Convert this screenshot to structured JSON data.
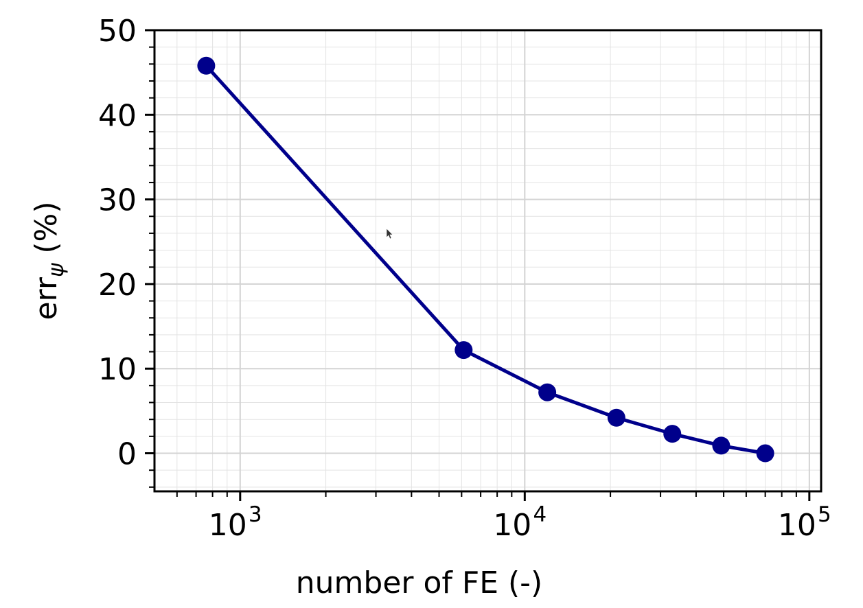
{
  "chart_data": {
    "type": "line",
    "xscale": "log",
    "xlabel": "number of FE (-)",
    "ylabel": {
      "base": "err",
      "subscript": "ψ",
      "suffix": " (%)"
    },
    "xlim": [
      500,
      110000
    ],
    "ylim": [
      -4.5,
      50
    ],
    "x_ticks": [
      {
        "value": 1000,
        "base": "10",
        "exp": "3"
      },
      {
        "value": 10000,
        "base": "10",
        "exp": "4"
      },
      {
        "value": 100000,
        "base": "10",
        "exp": "5"
      }
    ],
    "y_ticks": [
      0,
      10,
      20,
      30,
      40,
      50
    ],
    "grid": {
      "major": true,
      "minor": true
    },
    "series": [
      {
        "color": "#00008b",
        "marker": "circle",
        "x": [
          760,
          6100,
          12000,
          21000,
          33000,
          49000,
          70000
        ],
        "y": [
          45.8,
          12.2,
          7.2,
          4.2,
          2.3,
          0.9,
          0.0
        ]
      }
    ]
  }
}
